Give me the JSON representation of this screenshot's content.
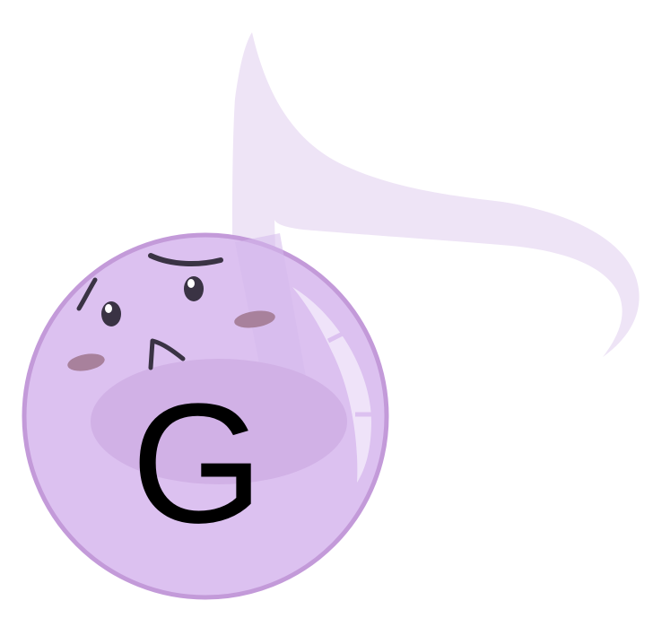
{
  "character": {
    "letter": "G",
    "expression": "worried",
    "colors": {
      "body": "#dcc1f0",
      "body_outline": "#c39ad9",
      "inner_shade": "#d1b1e6",
      "flag": "#eee4f6",
      "cheeks": "#a8819c",
      "eyes": "#3a3344",
      "letter": "#000000"
    }
  }
}
